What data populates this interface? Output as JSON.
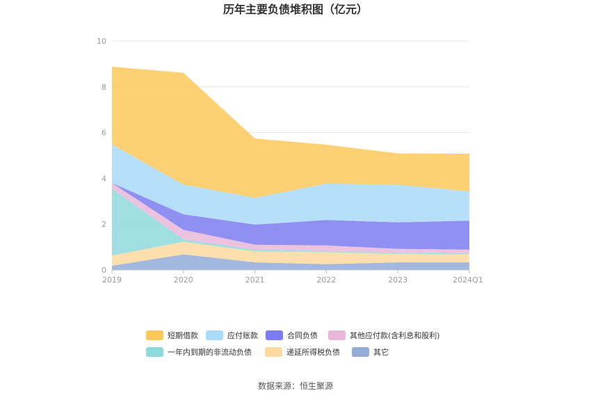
{
  "chart_data": {
    "type": "area",
    "stacked": true,
    "title": "历年主要负债堆积图（亿元）",
    "categories": [
      "2019",
      "2020",
      "2021",
      "2022",
      "2023",
      "2024Q1"
    ],
    "y_ticks": [
      "0",
      "2",
      "4",
      "6",
      "8",
      "10"
    ],
    "ylim": [
      0,
      10
    ],
    "grid": true,
    "legend_position": "bottom",
    "series": [
      {
        "name": "其它",
        "color": "#93acd8",
        "values": [
          0.18,
          0.68,
          0.33,
          0.25,
          0.33,
          0.33
        ]
      },
      {
        "name": "递延所得税负债",
        "color": "#fdd9a0",
        "values": [
          0.45,
          0.55,
          0.48,
          0.52,
          0.37,
          0.35
        ]
      },
      {
        "name": "一年内到期的非流动负债",
        "color": "#8ed9dc",
        "values": [
          2.92,
          0.1,
          0.07,
          0.05,
          0.04,
          0.04
        ]
      },
      {
        "name": "其他应付款(含利息和股利)",
        "color": "#e8b7d9",
        "values": [
          0.25,
          0.42,
          0.22,
          0.25,
          0.18,
          0.17
        ]
      },
      {
        "name": "合同负债",
        "color": "#7b7cf0",
        "values": [
          0.0,
          0.68,
          0.88,
          1.11,
          1.16,
          1.26
        ]
      },
      {
        "name": "应付账款",
        "color": "#a9dbf9",
        "values": [
          1.68,
          1.3,
          1.17,
          1.59,
          1.64,
          1.28
        ]
      },
      {
        "name": "短期借款",
        "color": "#fdc85a",
        "values": [
          3.4,
          4.88,
          2.59,
          1.7,
          1.37,
          1.65
        ]
      }
    ],
    "legend_order": [
      "短期借款",
      "应付账款",
      "合同负债",
      "其他应付款(含利息和股利)",
      "一年内到期的非流动负债",
      "递延所得税负债",
      "其它"
    ]
  },
  "source": "数据来源：恒生聚源"
}
